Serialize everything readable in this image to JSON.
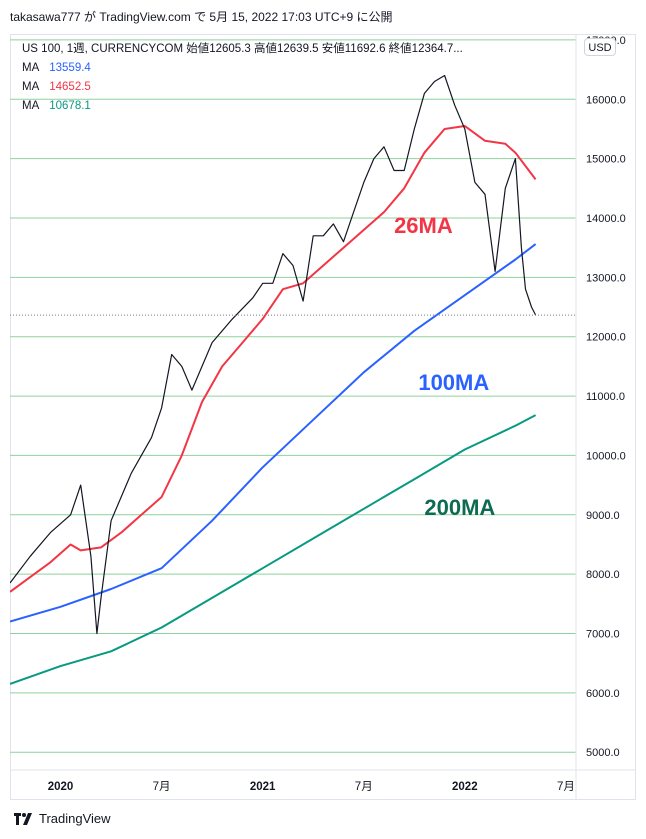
{
  "header": {
    "publisher_line": "takasawa777 が TradingView.com で 5月 15, 2022 17:03 UTC+9 に公開",
    "symbol_line": "US 100, 1週, CURRENCYCOM  始値12605.3  高値12639.5  安値11692.6  終値12364.7..."
  },
  "legend": [
    {
      "label": "MA",
      "value": "13559.4",
      "color": "#2962ff"
    },
    {
      "label": "MA",
      "value": "14652.5",
      "color": "#f23645"
    },
    {
      "label": "MA",
      "value": "10678.1",
      "color": "#089981"
    }
  ],
  "currency_button": "USD",
  "footer": {
    "brand": "TradingView",
    "icon": "tradingview-logo-icon"
  },
  "chart_data": {
    "type": "line",
    "y_axis": {
      "ticks": [
        "17000.0",
        "16000.0",
        "15000.0",
        "14000.0",
        "13000.0",
        "12000.0",
        "11000.0",
        "10000.0",
        "9000.0",
        "8000.0",
        "7000.0",
        "6000.0",
        "5000.0"
      ],
      "tick_values": [
        17000,
        16000,
        15000,
        14000,
        13000,
        12000,
        11000,
        10000,
        9000,
        8000,
        7000,
        6000,
        5000
      ],
      "ylim": [
        4700,
        17100
      ],
      "grid": true
    },
    "x_axis": {
      "ticks": [
        {
          "label": "2020",
          "bold": true,
          "t": 2020.0
        },
        {
          "label": "7月",
          "bold": false,
          "t": 2020.5
        },
        {
          "label": "2021",
          "bold": true,
          "t": 2021.0
        },
        {
          "label": "7月",
          "bold": false,
          "t": 2021.5
        },
        {
          "label": "2022",
          "bold": true,
          "t": 2022.0
        },
        {
          "label": "7月",
          "bold": false,
          "t": 2022.5
        }
      ],
      "xlim": [
        2019.75,
        2022.55
      ]
    },
    "last_close": 12364.7,
    "annotations": [
      {
        "text": "26MA",
        "color": "#f23645",
        "at": [
          2021.65,
          13750
        ]
      },
      {
        "text": "100MA",
        "color": "#2962ff",
        "at": [
          2021.77,
          11100
        ]
      },
      {
        "text": "200MA",
        "color": "#0e6b52",
        "at": [
          2021.8,
          9000
        ]
      }
    ],
    "series": [
      {
        "name": "MA26",
        "color": "#f23645",
        "t": [
          2019.75,
          2019.85,
          2019.95,
          2020.05,
          2020.1,
          2020.2,
          2020.3,
          2020.4,
          2020.5,
          2020.6,
          2020.7,
          2020.8,
          2020.9,
          2021.0,
          2021.1,
          2021.2,
          2021.3,
          2021.4,
          2021.5,
          2021.6,
          2021.7,
          2021.75,
          2021.8,
          2021.85,
          2021.9,
          2022.0,
          2022.1,
          2022.2,
          2022.25,
          2022.35
        ],
        "y": [
          7700,
          7950,
          8200,
          8500,
          8400,
          8450,
          8700,
          9000,
          9300,
          10000,
          10900,
          11500,
          11900,
          12300,
          12800,
          12900,
          13200,
          13500,
          13800,
          14100,
          14500,
          14800,
          15100,
          15300,
          15500,
          15550,
          15300,
          15250,
          15100,
          14650
        ]
      },
      {
        "name": "MA100",
        "color": "#2962ff",
        "t": [
          2019.75,
          2020.0,
          2020.25,
          2020.5,
          2020.75,
          2021.0,
          2021.25,
          2021.5,
          2021.75,
          2022.0,
          2022.25,
          2022.35
        ],
        "y": [
          7200,
          7450,
          7750,
          8100,
          8900,
          9800,
          10600,
          11400,
          12100,
          12700,
          13300,
          13560
        ]
      },
      {
        "name": "MA200",
        "color": "#089981",
        "t": [
          2019.75,
          2020.0,
          2020.25,
          2020.5,
          2020.75,
          2021.0,
          2021.25,
          2021.5,
          2021.75,
          2022.0,
          2022.25,
          2022.35
        ],
        "y": [
          6150,
          6450,
          6700,
          7100,
          7600,
          8100,
          8600,
          9100,
          9600,
          10100,
          10500,
          10680
        ]
      },
      {
        "name": "Price",
        "color": "#131722",
        "t": [
          2019.75,
          2019.85,
          2019.95,
          2020.05,
          2020.1,
          2020.15,
          2020.18,
          2020.2,
          2020.25,
          2020.35,
          2020.45,
          2020.5,
          2020.55,
          2020.6,
          2020.65,
          2020.75,
          2020.85,
          2020.95,
          2021.0,
          2021.05,
          2021.1,
          2021.15,
          2021.2,
          2021.25,
          2021.3,
          2021.35,
          2021.4,
          2021.45,
          2021.5,
          2021.55,
          2021.6,
          2021.65,
          2021.7,
          2021.75,
          2021.8,
          2021.85,
          2021.9,
          2021.95,
          2022.0,
          2022.05,
          2022.1,
          2022.15,
          2022.2,
          2022.25,
          2022.28,
          2022.3,
          2022.33,
          2022.35
        ],
        "y": [
          7850,
          8300,
          8700,
          9000,
          9500,
          8300,
          7000,
          7600,
          8900,
          9700,
          10300,
          10800,
          11700,
          11500,
          11100,
          11900,
          12300,
          12650,
          12900,
          12900,
          13400,
          13200,
          12600,
          13700,
          13700,
          13900,
          13600,
          14100,
          14600,
          15000,
          15200,
          14800,
          14800,
          15500,
          16100,
          16300,
          16400,
          15900,
          15500,
          14600,
          14400,
          13100,
          14500,
          15000,
          13500,
          12800,
          12500,
          12365
        ]
      }
    ]
  }
}
